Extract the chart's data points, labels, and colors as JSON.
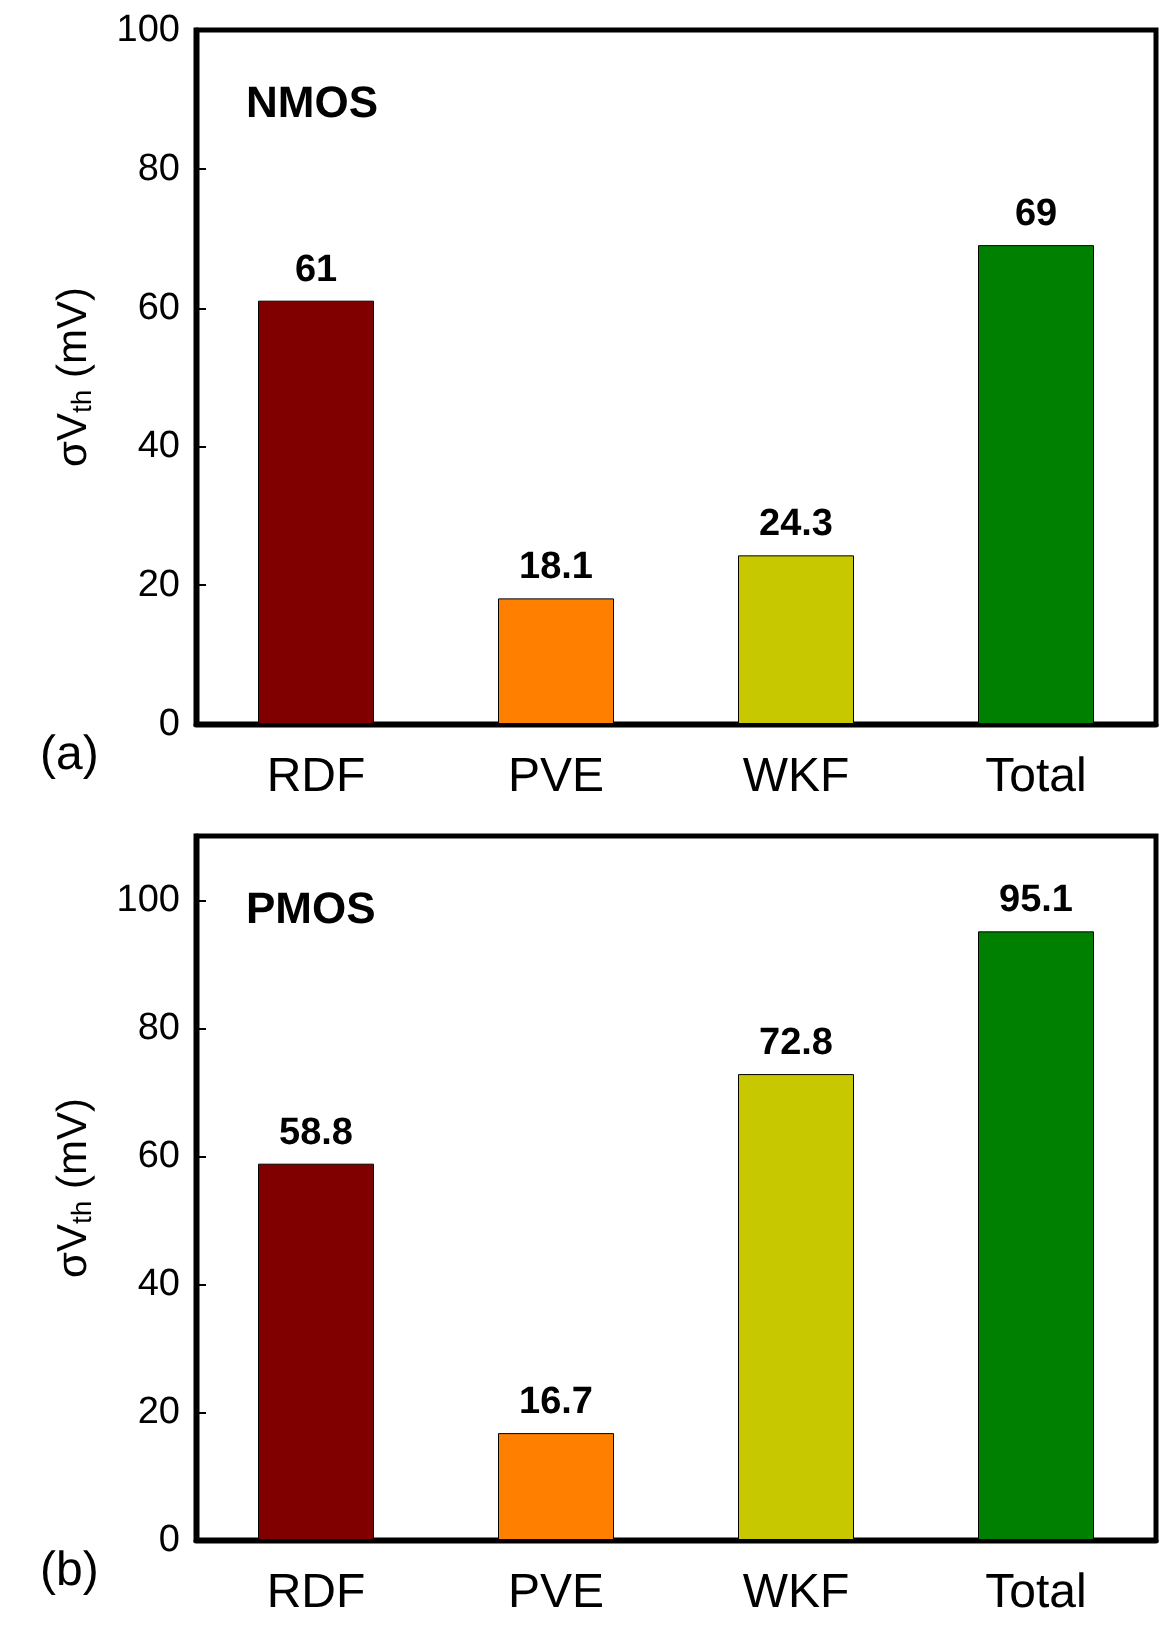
{
  "chart_data": [
    {
      "type": "bar",
      "title": "NMOS",
      "ylabel": "σV$_{th}$ (mV)",
      "annotations": [
        "(a)"
      ],
      "categories": [
        "RDF",
        "PVE",
        "WKF",
        "Total"
      ],
      "values": [
        61,
        18.1,
        24.3,
        69
      ],
      "colors": [
        "#800000",
        "#ff8000",
        "#c8c800",
        "#008000"
      ],
      "data_labels": true,
      "ylim": [
        0,
        100
      ],
      "yticks": [
        0,
        20,
        40,
        60,
        80,
        100
      ]
    },
    {
      "type": "bar",
      "title": "PMOS",
      "ylabel": "σV$_{th}$ (mV)",
      "annotations": [
        "(b)"
      ],
      "categories": [
        "RDF",
        "PVE",
        "WKF",
        "Total"
      ],
      "values": [
        58.8,
        16.7,
        72.8,
        95.1
      ],
      "colors": [
        "#800000",
        "#ff8000",
        "#c8c800",
        "#008000"
      ],
      "data_labels": true,
      "ylim": [
        0,
        110
      ],
      "yticks": [
        0,
        20,
        40,
        60,
        80,
        100
      ]
    }
  ]
}
